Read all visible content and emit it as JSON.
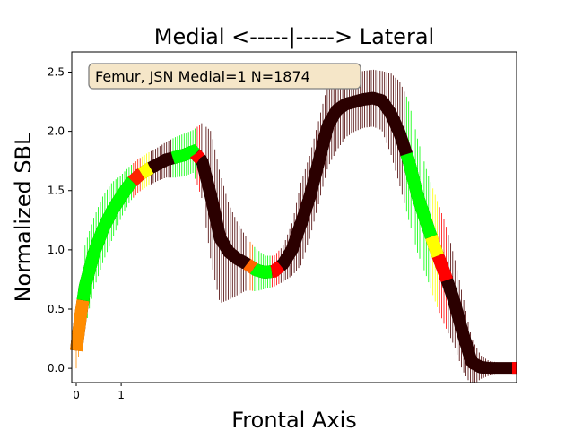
{
  "chart_data": {
    "type": "line",
    "title": "Medial <-----|-----> Lateral",
    "xlabel": "Frontal Axis",
    "ylabel": "Normalized SBL",
    "xlim": [
      -0.1,
      9.8
    ],
    "ylim": [
      -0.12,
      2.67
    ],
    "x_ticks": [
      0,
      1
    ],
    "x_tick_labels": [
      "0",
      "1"
    ],
    "y_ticks": [
      0.0,
      0.5,
      1.0,
      1.5,
      2.0,
      2.5
    ],
    "y_tick_labels": [
      "0.0",
      "0.5",
      "1.0",
      "1.5",
      "2.0",
      "2.5"
    ],
    "grid": false,
    "annotation": "Femur, JSN Medial=1 N=1874",
    "annotation_position": "top-left",
    "colors": {
      "base_curve": "#2b0000",
      "low_value": "#00ff00",
      "mid_value": "#ffff00",
      "high_value": "#ff0000",
      "errorbar_dark": "#4a0000",
      "annotation_fill": "#f5e6c8",
      "annotation_border": "#7f7f7f"
    },
    "series": [
      {
        "x": [
          0.0,
          0.1,
          0.2,
          0.4,
          0.6,
          0.8,
          1.0,
          1.2,
          1.4,
          1.6,
          1.8,
          2.0,
          2.2,
          2.4,
          2.6,
          2.8,
          3.0,
          3.2,
          3.4,
          3.6,
          3.8,
          4.0,
          4.2,
          4.4,
          4.6,
          4.8,
          5.0,
          5.2,
          5.4,
          5.6,
          5.8,
          6.0,
          6.2,
          6.4,
          6.6,
          6.8,
          7.0,
          7.2,
          7.4,
          7.6,
          7.8,
          8.0,
          8.2,
          8.4,
          8.6,
          8.8,
          9.0,
          9.2,
          9.4,
          9.6,
          9.8
        ],
        "y": [
          0.15,
          0.45,
          0.7,
          0.98,
          1.18,
          1.33,
          1.45,
          1.56,
          1.63,
          1.68,
          1.72,
          1.76,
          1.78,
          1.8,
          1.83,
          1.75,
          1.45,
          1.1,
          0.98,
          0.92,
          0.88,
          0.83,
          0.81,
          0.82,
          0.88,
          1.0,
          1.22,
          1.45,
          1.75,
          2.05,
          2.18,
          2.23,
          2.25,
          2.27,
          2.28,
          2.26,
          2.15,
          1.98,
          1.75,
          1.45,
          1.22,
          1.0,
          0.8,
          0.58,
          0.3,
          0.05,
          0.01,
          0.0,
          0.0,
          0.0,
          0.0
        ],
        "err": [
          0.15,
          0.25,
          0.35,
          0.3,
          0.28,
          0.24,
          0.18,
          0.15,
          0.14,
          0.14,
          0.14,
          0.15,
          0.17,
          0.18,
          0.18,
          0.32,
          0.55,
          0.55,
          0.4,
          0.3,
          0.22,
          0.18,
          0.14,
          0.13,
          0.15,
          0.22,
          0.35,
          0.35,
          0.35,
          0.35,
          0.34,
          0.28,
          0.25,
          0.24,
          0.24,
          0.25,
          0.34,
          0.44,
          0.5,
          0.48,
          0.45,
          0.45,
          0.44,
          0.38,
          0.32,
          0.2,
          0.1,
          0.06,
          0.05,
          0.04,
          0.02
        ],
        "intensity": [
          0.9,
          0.5,
          0.0,
          0.0,
          0.0,
          0.0,
          0.0,
          0.0,
          0.0,
          0.7,
          0.3,
          0.0,
          0.0,
          0.0,
          0.1,
          0.0,
          0.0,
          0.0,
          0.0,
          0.0,
          0.0,
          0.6,
          0.3,
          0.0,
          0.0,
          0.6,
          0.0,
          0.0,
          0.0,
          0.0,
          0.0,
          0.0,
          0.0,
          0.0,
          0.0,
          0.0,
          0.0,
          0.0,
          0.0,
          0.0,
          0.0,
          0.0,
          0.0,
          0.0,
          0.0,
          0.0,
          0.0,
          0.0,
          0.0,
          0.0,
          0.0
        ]
      }
    ],
    "highlight_ranges": [
      {
        "x_from": 0.0,
        "x_to": 0.15,
        "color": "#ff8c00"
      },
      {
        "x_from": 0.15,
        "x_to": 1.25,
        "color": "#00ff00"
      },
      {
        "x_from": 1.25,
        "x_to": 1.45,
        "color": "#ff2200"
      },
      {
        "x_from": 1.45,
        "x_to": 1.65,
        "color": "#ffff00"
      },
      {
        "x_from": 1.65,
        "x_to": 2.15,
        "color": "#4a0000"
      },
      {
        "x_from": 2.15,
        "x_to": 2.65,
        "color": "#00ff00"
      },
      {
        "x_from": 2.65,
        "x_to": 2.75,
        "color": "#ff0000"
      },
      {
        "x_from": 3.8,
        "x_to": 3.95,
        "color": "#ff6600"
      },
      {
        "x_from": 3.95,
        "x_to": 4.35,
        "color": "#00ff00"
      },
      {
        "x_from": 4.35,
        "x_to": 4.55,
        "color": "#ff0000"
      },
      {
        "x_from": 7.35,
        "x_to": 7.9,
        "color": "#00ff00"
      },
      {
        "x_from": 7.9,
        "x_to": 8.05,
        "color": "#ffff00"
      },
      {
        "x_from": 8.05,
        "x_to": 8.25,
        "color": "#ff0000"
      },
      {
        "x_from": 9.7,
        "x_to": 9.8,
        "color": "#ff0000"
      }
    ]
  }
}
